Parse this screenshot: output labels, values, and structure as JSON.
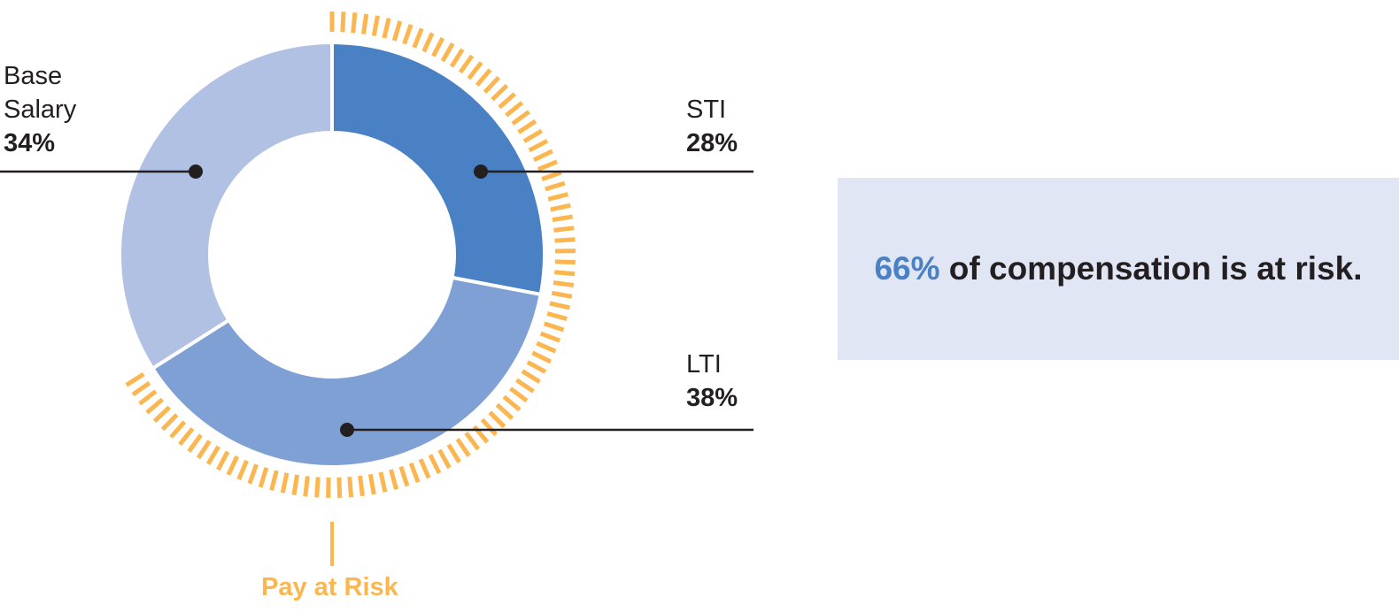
{
  "chart_data": {
    "type": "pie",
    "title": "",
    "segments": [
      {
        "name": "Base Salary",
        "name_lines": [
          "Base",
          "Salary"
        ],
        "value": 34,
        "label": "34%",
        "color": "#b1c1e3"
      },
      {
        "name": "STI",
        "name_lines": [
          "STI"
        ],
        "value": 28,
        "label": "28%",
        "color": "#4a80c4"
      },
      {
        "name": "LTI",
        "name_lines": [
          "LTI"
        ],
        "value": 38,
        "label": "38%",
        "color": "#7fa0d4"
      }
    ],
    "risk_arc": {
      "label": "Pay at Risk",
      "color": "#fbb64f",
      "covers": [
        "STI",
        "LTI"
      ]
    }
  },
  "callout": {
    "percent": "66%",
    "text": " of compensation is at risk.",
    "background": "#e1e6f5",
    "accent": "#4a80c4"
  }
}
